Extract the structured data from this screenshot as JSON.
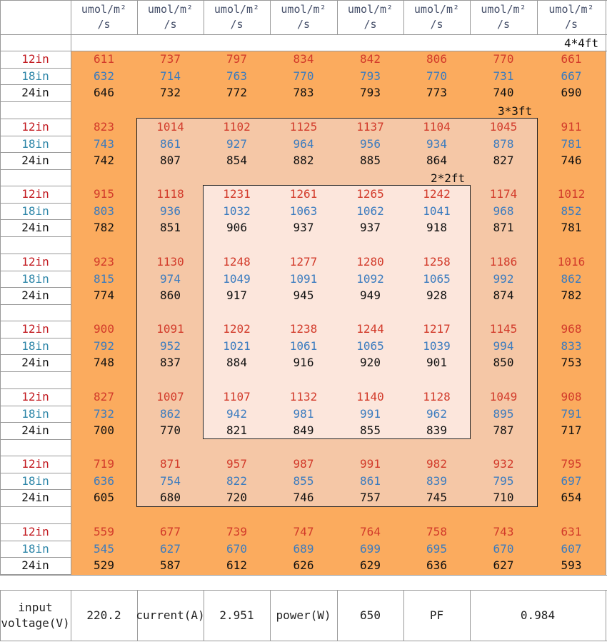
{
  "header": {
    "unit_top": "umol/m²",
    "unit_bottom": "/s"
  },
  "zones": {
    "outer": "4*4ft",
    "middle": "3*3ft",
    "inner": "2*2ft"
  },
  "row_labels": [
    "12in",
    "18in",
    "24in"
  ],
  "groups": [
    {
      "r12": [
        "611",
        "737",
        "797",
        "834",
        "842",
        "806",
        "770",
        "661"
      ],
      "r18": [
        "632",
        "714",
        "763",
        "770",
        "793",
        "770",
        "731",
        "667"
      ],
      "r24": [
        "646",
        "732",
        "772",
        "783",
        "793",
        "773",
        "740",
        "690"
      ]
    },
    {
      "r12": [
        "823",
        "1014",
        "1102",
        "1125",
        "1137",
        "1104",
        "1045",
        "911"
      ],
      "r18": [
        "743",
        "861",
        "927",
        "964",
        "956",
        "934",
        "878",
        "781"
      ],
      "r24": [
        "742",
        "807",
        "854",
        "882",
        "885",
        "864",
        "827",
        "746"
      ]
    },
    {
      "r12": [
        "915",
        "1118",
        "1231",
        "1261",
        "1265",
        "1242",
        "1174",
        "1012"
      ],
      "r18": [
        "803",
        "936",
        "1032",
        "1063",
        "1062",
        "1041",
        "968",
        "852"
      ],
      "r24": [
        "782",
        "851",
        "906",
        "937",
        "937",
        "918",
        "871",
        "781"
      ]
    },
    {
      "r12": [
        "923",
        "1130",
        "1248",
        "1277",
        "1280",
        "1258",
        "1186",
        "1016"
      ],
      "r18": [
        "815",
        "974",
        "1049",
        "1091",
        "1092",
        "1065",
        "992",
        "862"
      ],
      "r24": [
        "774",
        "860",
        "917",
        "945",
        "949",
        "928",
        "874",
        "782"
      ]
    },
    {
      "r12": [
        "900",
        "1091",
        "1202",
        "1238",
        "1244",
        "1217",
        "1145",
        "968"
      ],
      "r18": [
        "792",
        "952",
        "1021",
        "1061",
        "1065",
        "1039",
        "994",
        "833"
      ],
      "r24": [
        "748",
        "837",
        "884",
        "916",
        "920",
        "901",
        "850",
        "753"
      ]
    },
    {
      "r12": [
        "827",
        "1007",
        "1107",
        "1132",
        "1140",
        "1128",
        "1049",
        "908"
      ],
      "r18": [
        "732",
        "862",
        "942",
        "981",
        "991",
        "962",
        "895",
        "791"
      ],
      "r24": [
        "700",
        "770",
        "821",
        "849",
        "855",
        "839",
        "787",
        "717"
      ]
    },
    {
      "r12": [
        "719",
        "871",
        "957",
        "987",
        "991",
        "982",
        "932",
        "795"
      ],
      "r18": [
        "636",
        "754",
        "822",
        "855",
        "861",
        "839",
        "795",
        "697"
      ],
      "r24": [
        "605",
        "680",
        "720",
        "746",
        "757",
        "745",
        "710",
        "654"
      ]
    },
    {
      "r12": [
        "559",
        "677",
        "739",
        "747",
        "764",
        "758",
        "743",
        "631"
      ],
      "r18": [
        "545",
        "627",
        "670",
        "689",
        "699",
        "695",
        "670",
        "607"
      ],
      "r24": [
        "529",
        "587",
        "612",
        "626",
        "629",
        "636",
        "627",
        "593"
      ]
    }
  ],
  "footer": {
    "voltage_label": "input voltage(V)",
    "voltage_value": "220.2",
    "current_label": "current(A)",
    "current_value": "2.951",
    "power_label": "power(W)",
    "power_value": "650",
    "pf_label": "PF",
    "pf_value": "0.984"
  },
  "colors": {
    "outer_zone": "#fbab5e",
    "middle_zone": "#f5c7a6",
    "inner_zone": "#fce6dc",
    "row12": "#d23a2a",
    "row18": "#3a7bbf",
    "row24": "#111111"
  }
}
